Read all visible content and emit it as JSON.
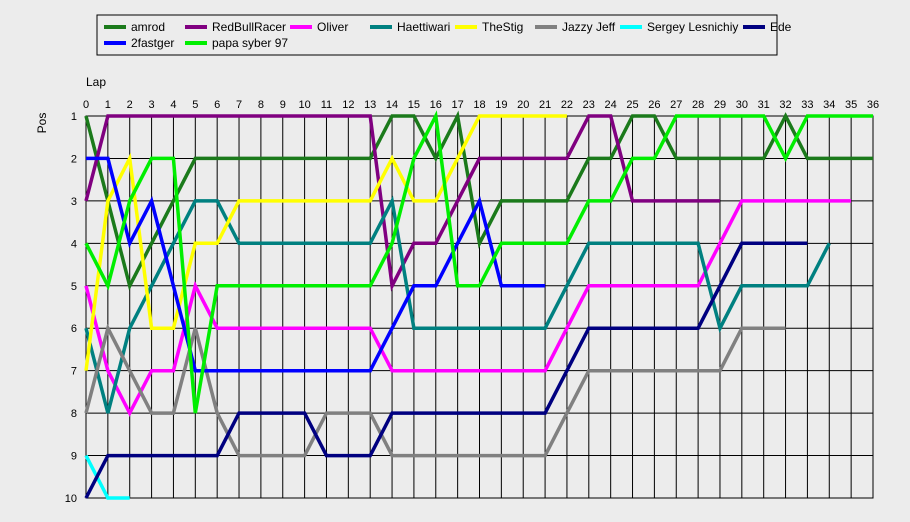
{
  "chart_data": {
    "type": "line",
    "xlabel": "Lap",
    "ylabel": "Pos",
    "xlim": [
      0,
      36
    ],
    "ylim": [
      1,
      10
    ],
    "x_ticks": [
      0,
      1,
      2,
      3,
      4,
      5,
      6,
      7,
      8,
      9,
      10,
      11,
      12,
      13,
      14,
      15,
      16,
      17,
      18,
      19,
      20,
      21,
      22,
      23,
      24,
      25,
      26,
      27,
      28,
      29,
      30,
      31,
      32,
      33,
      34,
      35,
      36
    ],
    "y_ticks": [
      1,
      2,
      3,
      4,
      5,
      6,
      7,
      8,
      9,
      10
    ],
    "y_inverted": true,
    "grid": true,
    "legend_position": "top-left",
    "series": [
      {
        "name": "amrod",
        "color": "#1b7a1b",
        "x": [
          0,
          1,
          2,
          3,
          4,
          5,
          6,
          7,
          8,
          9,
          10,
          11,
          12,
          13,
          14,
          15,
          16,
          17,
          18,
          19,
          20,
          21,
          22,
          23,
          24,
          25,
          26,
          27,
          28,
          29,
          30,
          31,
          32,
          33,
          34,
          35,
          36
        ],
        "y": [
          1,
          3,
          5,
          4,
          3,
          2,
          2,
          2,
          2,
          2,
          2,
          2,
          2,
          2,
          1,
          1,
          2,
          1,
          4,
          3,
          3,
          3,
          3,
          2,
          2,
          1,
          1,
          2,
          2,
          2,
          2,
          2,
          1,
          2,
          2,
          2,
          2
        ]
      },
      {
        "name": "RedBullRacer",
        "color": "#800080",
        "x": [
          0,
          1,
          2,
          3,
          4,
          5,
          6,
          7,
          8,
          9,
          10,
          11,
          12,
          13,
          14,
          15,
          16,
          17,
          18,
          19,
          20,
          21,
          22,
          23,
          24,
          25,
          26,
          27,
          28,
          29
        ],
        "y": [
          3,
          1,
          1,
          1,
          1,
          1,
          1,
          1,
          1,
          1,
          1,
          1,
          1,
          1,
          5,
          4,
          4,
          3,
          2,
          2,
          2,
          2,
          2,
          1,
          1,
          3,
          3,
          3,
          3,
          3
        ]
      },
      {
        "name": "Oliver",
        "color": "#ff00ff",
        "x": [
          0,
          1,
          2,
          3,
          4,
          5,
          6,
          7,
          8,
          9,
          10,
          11,
          12,
          13,
          14,
          15,
          16,
          17,
          18,
          19,
          20,
          21,
          22,
          23,
          24,
          25,
          26,
          27,
          28,
          29,
          30,
          31,
          32,
          33,
          34,
          35
        ],
        "y": [
          5,
          7,
          8,
          7,
          7,
          5,
          6,
          6,
          6,
          6,
          6,
          6,
          6,
          6,
          7,
          7,
          7,
          7,
          7,
          7,
          7,
          7,
          6,
          5,
          5,
          5,
          5,
          5,
          5,
          4,
          3,
          3,
          3,
          3,
          3,
          3
        ]
      },
      {
        "name": "Haettiwari",
        "color": "#008080",
        "x": [
          0,
          1,
          2,
          3,
          4,
          5,
          6,
          7,
          8,
          9,
          10,
          11,
          12,
          13,
          14,
          15,
          16,
          17,
          18,
          19,
          20,
          21,
          22,
          23,
          24,
          25,
          26,
          27,
          28,
          29,
          30,
          31,
          32,
          33,
          34
        ],
        "y": [
          6,
          8,
          6,
          5,
          4,
          3,
          3,
          4,
          4,
          4,
          4,
          4,
          4,
          4,
          3,
          6,
          6,
          6,
          6,
          6,
          6,
          6,
          5,
          4,
          4,
          4,
          4,
          4,
          4,
          6,
          5,
          5,
          5,
          5,
          4
        ]
      },
      {
        "name": "TheStig",
        "color": "#ffff00",
        "x": [
          0,
          1,
          2,
          3,
          4,
          5,
          6,
          7,
          8,
          9,
          10,
          11,
          12,
          13,
          14,
          15,
          16,
          17,
          18,
          19,
          20,
          21,
          22
        ],
        "y": [
          7,
          3,
          2,
          6,
          6,
          4,
          4,
          3,
          3,
          3,
          3,
          3,
          3,
          3,
          2,
          3,
          3,
          2,
          1,
          1,
          1,
          1,
          1
        ]
      },
      {
        "name": "Jazzy Jeff",
        "color": "#808080",
        "x": [
          0,
          1,
          2,
          3,
          4,
          5,
          6,
          7,
          8,
          9,
          10,
          11,
          12,
          13,
          14,
          15,
          16,
          17,
          18,
          19,
          20,
          21,
          22,
          23,
          24,
          25,
          26,
          27,
          28,
          29,
          30,
          31,
          32
        ],
        "y": [
          8,
          6,
          7,
          8,
          8,
          6,
          8,
          9,
          9,
          9,
          9,
          8,
          8,
          8,
          9,
          9,
          9,
          9,
          9,
          9,
          9,
          9,
          8,
          7,
          7,
          7,
          7,
          7,
          7,
          7,
          6,
          6,
          6
        ]
      },
      {
        "name": "Sergey Lesnichiy",
        "color": "#00ffff",
        "x": [
          0,
          1,
          2
        ],
        "y": [
          9,
          10,
          10
        ]
      },
      {
        "name": "2fastger",
        "color": "#0000ff",
        "x": [
          0,
          1,
          2,
          3,
          4,
          5,
          6,
          7,
          8,
          9,
          10,
          11,
          12,
          13,
          14,
          15,
          16,
          17,
          18,
          19,
          20,
          21
        ],
        "y": [
          2,
          2,
          4,
          3,
          5,
          7,
          7,
          7,
          7,
          7,
          7,
          7,
          7,
          7,
          6,
          5,
          5,
          4,
          3,
          5,
          5,
          5
        ]
      },
      {
        "name": "papa syber 97",
        "color": "#00ee00",
        "x": [
          0,
          1,
          2,
          3,
          4,
          5,
          6,
          7,
          8,
          9,
          10,
          11,
          12,
          13,
          14,
          15,
          16,
          17,
          18,
          19,
          20,
          21,
          22,
          23,
          24,
          25,
          26,
          27,
          28,
          29,
          30,
          31,
          32,
          33,
          34,
          35,
          36
        ],
        "y": [
          4,
          5,
          3,
          2,
          2,
          8,
          5,
          5,
          5,
          5,
          5,
          5,
          5,
          5,
          4,
          2,
          1,
          5,
          5,
          4,
          4,
          4,
          4,
          3,
          3,
          2,
          2,
          1,
          1,
          1,
          1,
          1,
          2,
          1,
          1,
          1,
          1
        ]
      },
      {
        "name": "Ede",
        "color": "#000080",
        "x": [
          0,
          1,
          2,
          3,
          4,
          5,
          6,
          7,
          8,
          9,
          10,
          11,
          12,
          13,
          14,
          15,
          16,
          17,
          18,
          19,
          20,
          21,
          22,
          23,
          24,
          25,
          26,
          27,
          28,
          29,
          30,
          31,
          32,
          33
        ],
        "y": [
          10,
          9,
          9,
          9,
          9,
          9,
          9,
          8,
          8,
          8,
          8,
          9,
          9,
          9,
          8,
          8,
          8,
          8,
          8,
          8,
          8,
          8,
          7,
          6,
          6,
          6,
          6,
          6,
          6,
          5,
          4,
          4,
          4,
          4
        ]
      }
    ]
  }
}
